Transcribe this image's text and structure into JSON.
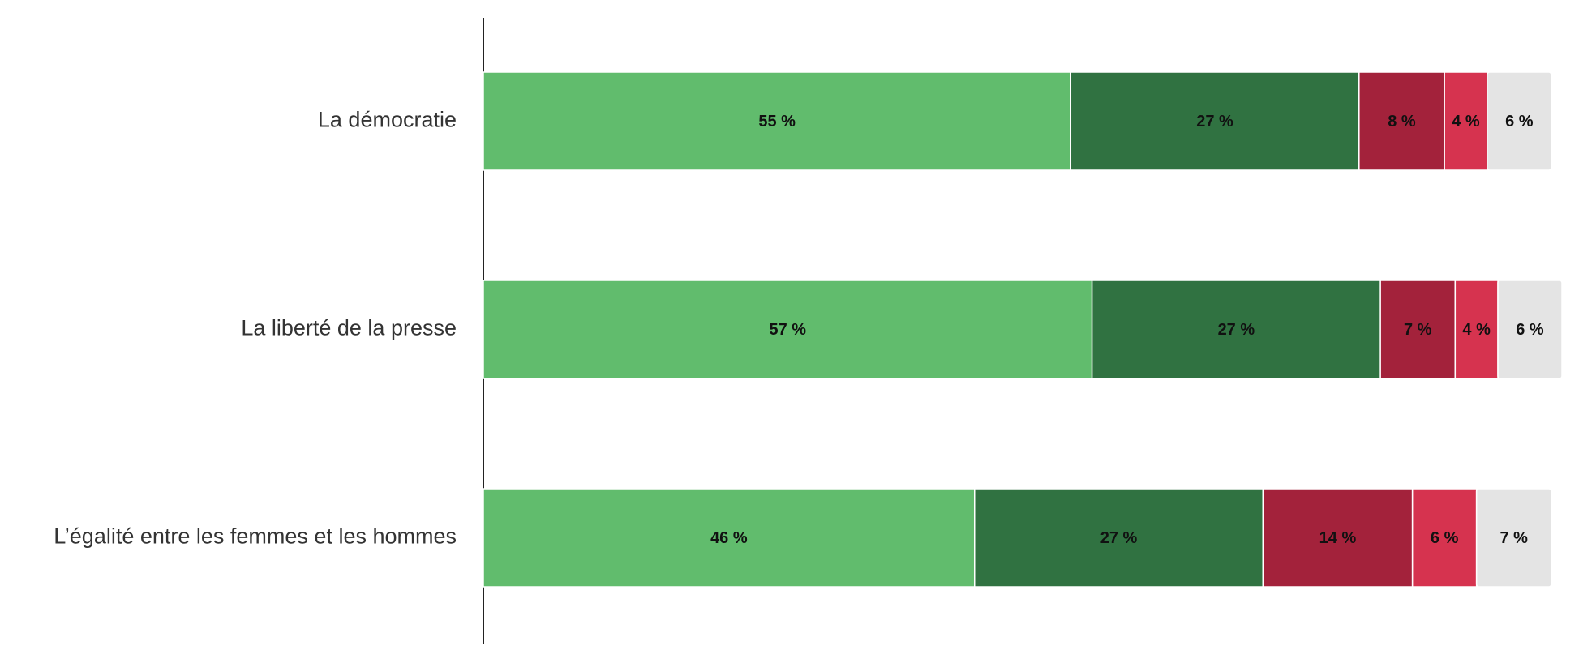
{
  "chart_data": {
    "type": "stacked-bar-horizontal",
    "categories": [
      "La démocratie",
      "La liberté de la presse",
      "L’égalité entre les femmes et les hommes"
    ],
    "series": [
      {
        "color": "#61bc6d",
        "values": [
          55,
          57,
          46
        ],
        "value_labels": [
          "55 %",
          "57 %",
          "46 %"
        ]
      },
      {
        "color": "#307241",
        "values": [
          27,
          27,
          27
        ],
        "value_labels": [
          "27 %",
          "27 %",
          "27 %"
        ]
      },
      {
        "color": "#a3223b",
        "values": [
          8,
          7,
          14
        ],
        "value_labels": [
          "8 %",
          "7 %",
          "14 %"
        ]
      },
      {
        "color": "#d6334f",
        "values": [
          4,
          4,
          6
        ],
        "value_labels": [
          "4 %",
          "4 %",
          "6 %"
        ]
      },
      {
        "color": "#e4e4e4",
        "values": [
          6,
          6,
          7
        ],
        "value_labels": [
          "6 %",
          "6 %",
          "7 %"
        ]
      }
    ],
    "xlim": [
      0,
      101
    ]
  }
}
